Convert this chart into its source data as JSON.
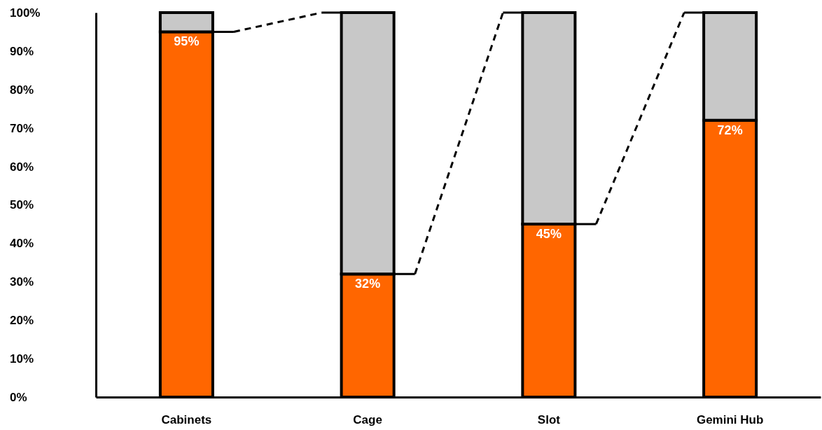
{
  "chart_data": {
    "type": "bar",
    "stacked": true,
    "categories": [
      "Cabinets",
      "Cage",
      "Slot",
      "Gemini Hub"
    ],
    "series": [
      {
        "color": "#ff6600",
        "values": [
          95,
          32,
          45,
          72
        ],
        "value_labels": [
          "95%",
          "32%",
          "45%",
          "72%"
        ]
      },
      {
        "color": "#c8c8c8",
        "values": [
          5,
          68,
          55,
          28
        ]
      }
    ],
    "ylim": [
      0,
      100
    ],
    "yticks": [
      {
        "value": 0,
        "label": "0%"
      },
      {
        "value": 10,
        "label": "10%"
      },
      {
        "value": 20,
        "label": "20%"
      },
      {
        "value": 30,
        "label": "30%"
      },
      {
        "value": 40,
        "label": "40%"
      },
      {
        "value": 50,
        "label": "50%"
      },
      {
        "value": 60,
        "label": "60%"
      },
      {
        "value": 70,
        "label": "70%"
      },
      {
        "value": 80,
        "label": "80%"
      },
      {
        "value": 90,
        "label": "90%"
      },
      {
        "value": 100,
        "label": "100%"
      }
    ],
    "grid": false
  }
}
